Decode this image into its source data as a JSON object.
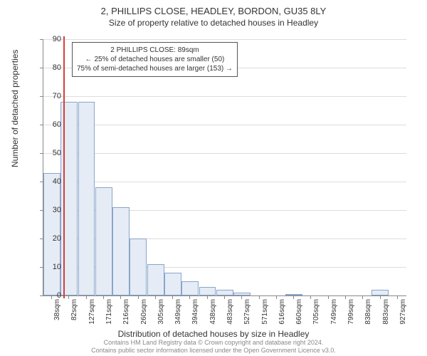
{
  "title": "2, PHILLIPS CLOSE, HEADLEY, BORDON, GU35 8LY",
  "subtitle": "Size of property relative to detached houses in Headley",
  "chart": {
    "type": "histogram",
    "ylabel": "Number of detached properties",
    "xlabel": "Distribution of detached houses by size in Headley",
    "ylim": [
      0,
      90
    ],
    "ytick_step": 10,
    "bar_color": "#e5ecf6",
    "bar_border": "#8aa5c9",
    "grid_color": "#dddddd",
    "marker_color": "#d43f3a",
    "background": "#ffffff",
    "x_ticks": [
      "38sqm",
      "82sqm",
      "127sqm",
      "171sqm",
      "216sqm",
      "260sqm",
      "305sqm",
      "349sqm",
      "394sqm",
      "438sqm",
      "483sqm",
      "527sqm",
      "571sqm",
      "616sqm",
      "660sqm",
      "705sqm",
      "749sqm",
      "799sqm",
      "838sqm",
      "883sqm",
      "927sqm"
    ],
    "bars": [
      43,
      68,
      68,
      38,
      31,
      20,
      11,
      8,
      5,
      3,
      2,
      1,
      0,
      0,
      0.5,
      0,
      0,
      0,
      0,
      2,
      0
    ],
    "marker_index": 1,
    "marker_value": 89,
    "annotation": {
      "line1": "2 PHILLIPS CLOSE: 89sqm",
      "line2": "← 25% of detached houses are smaller (50)",
      "line3": "75% of semi-detached houses are larger (153) →"
    }
  },
  "footer": {
    "line1": "Contains HM Land Registry data © Crown copyright and database right 2024.",
    "line2": "Contains public sector information licensed under the Open Government Licence v3.0."
  }
}
